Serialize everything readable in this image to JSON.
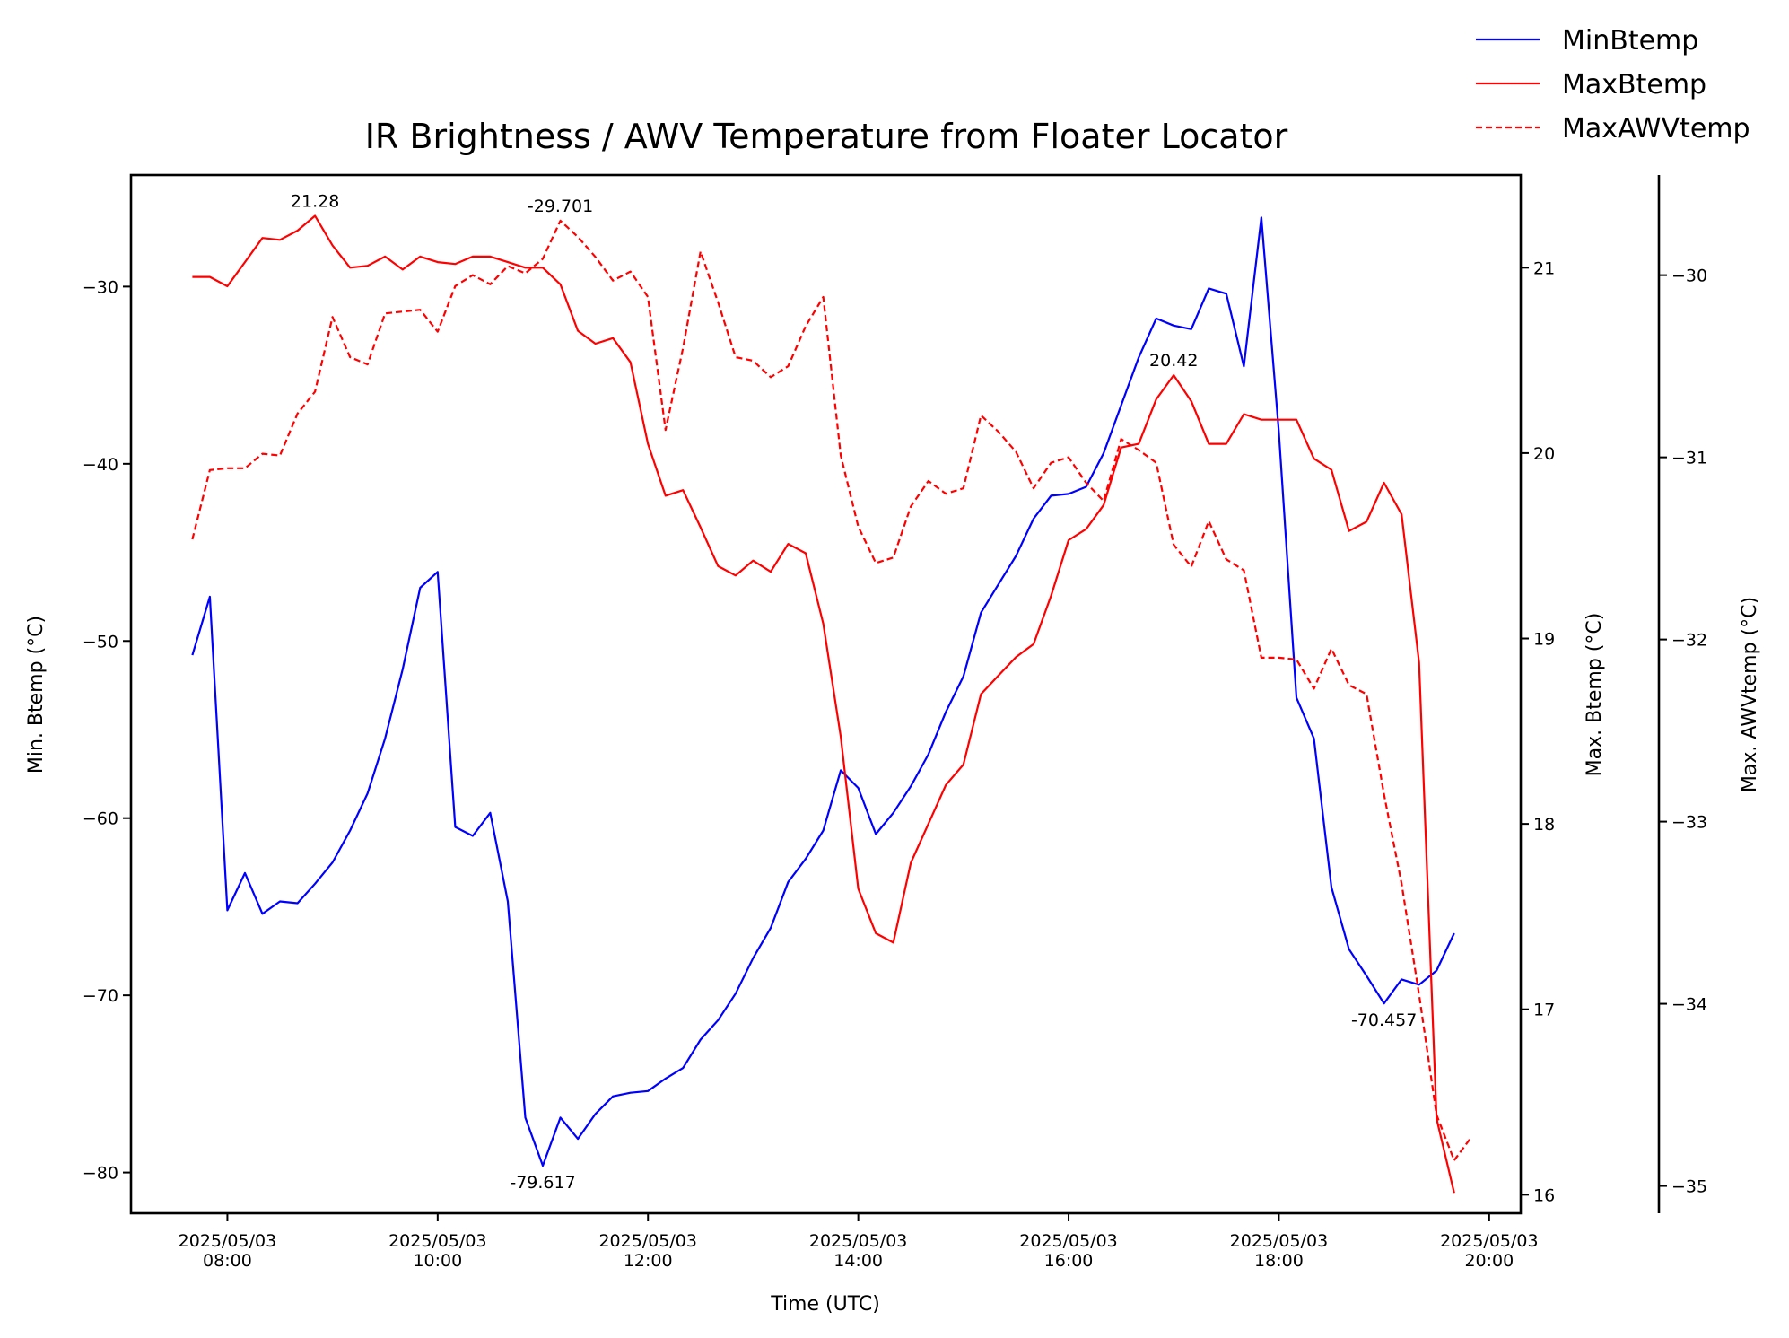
{
  "chart_data": {
    "type": "line",
    "title": "IR Brightness / AWV Temperature from Floater Locator",
    "xlabel": "Time (UTC)",
    "x_ticks": [
      "2025/05/03 08:00",
      "2025/05/03 10:00",
      "2025/05/03 12:00",
      "2025/05/03 14:00",
      "2025/05/03 16:00",
      "2025/05/03 18:00",
      "2025/05/03 20:00"
    ],
    "x_range": [
      "2025/05/03 07:05",
      "2025/05/03 20:18"
    ],
    "legend_position": "top-right, outside plot",
    "grid": false,
    "axes": {
      "left": {
        "label": "Min. Btemp (°C)",
        "range": [
          -82.3,
          -23.7
        ],
        "ticks": [
          -30,
          -40,
          -50,
          -60,
          -70,
          -80
        ]
      },
      "right": {
        "label": "Max. Btemp (°C)",
        "range": [
          15.9,
          21.5
        ],
        "ticks": [
          21,
          20,
          19,
          18,
          17,
          16
        ]
      },
      "right2": {
        "label": "Max. AWVtemp (°C)",
        "range": [
          -35.15,
          -29.45
        ],
        "ticks": [
          -30,
          -31,
          -32,
          -33,
          -34,
          -35
        ]
      }
    },
    "series": [
      {
        "name": "MinBtemp",
        "axis": "left",
        "color": "#0000ff",
        "style": "solid",
        "points": [
          [
            "07:40",
            -50.8
          ],
          [
            "07:50",
            -47.5
          ],
          [
            "08:00",
            -65.2
          ],
          [
            "08:10",
            -63.1
          ],
          [
            "08:20",
            -65.4
          ],
          [
            "08:30",
            -64.7
          ],
          [
            "08:40",
            -64.8
          ],
          [
            "08:50",
            -63.7
          ],
          [
            "09:00",
            -62.5
          ],
          [
            "09:10",
            -60.7
          ],
          [
            "09:20",
            -58.6
          ],
          [
            "09:30",
            -55.5
          ],
          [
            "09:40",
            -51.6
          ],
          [
            "09:50",
            -47.0
          ],
          [
            "10:00",
            -46.1
          ],
          [
            "10:10",
            -60.5
          ],
          [
            "10:20",
            -61.0
          ],
          [
            "10:30",
            -59.7
          ],
          [
            "10:40",
            -64.7
          ],
          [
            "10:50",
            -76.9
          ],
          [
            "11:00",
            -79.617
          ],
          [
            "11:10",
            -76.9
          ],
          [
            "11:20",
            -78.1
          ],
          [
            "11:30",
            -76.7
          ],
          [
            "11:40",
            -75.7
          ],
          [
            "11:50",
            -75.5
          ],
          [
            "12:00",
            -75.4
          ],
          [
            "12:10",
            -74.7
          ],
          [
            "12:20",
            -74.1
          ],
          [
            "12:30",
            -72.5
          ],
          [
            "12:40",
            -71.4
          ],
          [
            "12:50",
            -69.9
          ],
          [
            "13:00",
            -67.9
          ],
          [
            "13:10",
            -66.2
          ],
          [
            "13:20",
            -63.6
          ],
          [
            "13:30",
            -62.3
          ],
          [
            "13:40",
            -60.7
          ],
          [
            "13:50",
            -57.3
          ],
          [
            "14:00",
            -58.3
          ],
          [
            "14:10",
            -60.9
          ],
          [
            "14:20",
            -59.7
          ],
          [
            "14:30",
            -58.2
          ],
          [
            "14:40",
            -56.4
          ],
          [
            "14:50",
            -54.0
          ],
          [
            "15:00",
            -52.0
          ],
          [
            "15:10",
            -48.4
          ],
          [
            "15:20",
            -46.8
          ],
          [
            "15:30",
            -45.2
          ],
          [
            "15:40",
            -43.1
          ],
          [
            "15:50",
            -41.8
          ],
          [
            "16:00",
            -41.7
          ],
          [
            "16:10",
            -41.3
          ],
          [
            "16:20",
            -39.4
          ],
          [
            "16:30",
            -36.7
          ],
          [
            "16:40",
            -34.0
          ],
          [
            "16:50",
            -31.8
          ],
          [
            "17:00",
            -32.2
          ],
          [
            "17:10",
            -32.4
          ],
          [
            "17:20",
            -30.1
          ],
          [
            "17:30",
            -30.4
          ],
          [
            "17:40",
            -34.5
          ],
          [
            "17:50",
            -26.1
          ],
          [
            "18:00",
            -38.2
          ],
          [
            "18:10",
            -53.2
          ],
          [
            "18:20",
            -55.5
          ],
          [
            "18:30",
            -63.9
          ],
          [
            "18:40",
            -67.4
          ],
          [
            "18:50",
            -68.9
          ],
          [
            "19:00",
            -70.457
          ],
          [
            "19:10",
            -69.1
          ],
          [
            "19:20",
            -69.4
          ],
          [
            "19:30",
            -68.6
          ],
          [
            "19:40",
            -66.5
          ]
        ]
      },
      {
        "name": "MaxBtemp",
        "axis": "right",
        "color": "#ff0000",
        "style": "solid",
        "points": [
          [
            "07:40",
            20.95
          ],
          [
            "07:50",
            20.95
          ],
          [
            "08:00",
            20.9
          ],
          [
            "08:10",
            21.03
          ],
          [
            "08:20",
            21.16
          ],
          [
            "08:30",
            21.15
          ],
          [
            "08:40",
            21.2
          ],
          [
            "08:50",
            21.28
          ],
          [
            "09:00",
            21.12
          ],
          [
            "09:10",
            21.0
          ],
          [
            "09:20",
            21.01
          ],
          [
            "09:30",
            21.06
          ],
          [
            "09:40",
            20.99
          ],
          [
            "09:50",
            21.06
          ],
          [
            "10:00",
            21.03
          ],
          [
            "10:10",
            21.02
          ],
          [
            "10:20",
            21.06
          ],
          [
            "10:30",
            21.06
          ],
          [
            "10:40",
            21.03
          ],
          [
            "10:50",
            21.0
          ],
          [
            "11:00",
            21.0
          ],
          [
            "11:10",
            20.91
          ],
          [
            "11:20",
            20.66
          ],
          [
            "11:30",
            20.59
          ],
          [
            "11:40",
            20.62
          ],
          [
            "11:50",
            20.49
          ],
          [
            "12:00",
            20.05
          ],
          [
            "12:10",
            19.77
          ],
          [
            "12:20",
            19.8
          ],
          [
            "12:30",
            19.6
          ],
          [
            "12:40",
            19.39
          ],
          [
            "12:50",
            19.34
          ],
          [
            "13:00",
            19.42
          ],
          [
            "13:10",
            19.36
          ],
          [
            "13:20",
            19.51
          ],
          [
            "13:30",
            19.46
          ],
          [
            "13:40",
            19.08
          ],
          [
            "13:50",
            18.47
          ],
          [
            "14:00",
            17.65
          ],
          [
            "14:10",
            17.41
          ],
          [
            "14:20",
            17.36
          ],
          [
            "14:30",
            17.79
          ],
          [
            "14:40",
            18.0
          ],
          [
            "14:50",
            18.21
          ],
          [
            "15:00",
            18.32
          ],
          [
            "15:10",
            18.7
          ],
          [
            "15:20",
            18.8
          ],
          [
            "15:30",
            18.9
          ],
          [
            "15:40",
            18.97
          ],
          [
            "15:50",
            19.23
          ],
          [
            "16:00",
            19.53
          ],
          [
            "16:10",
            19.59
          ],
          [
            "16:20",
            19.72
          ],
          [
            "16:30",
            20.03
          ],
          [
            "16:40",
            20.05
          ],
          [
            "16:50",
            20.29
          ],
          [
            "17:00",
            20.42
          ],
          [
            "17:10",
            20.28
          ],
          [
            "17:20",
            20.05
          ],
          [
            "17:30",
            20.05
          ],
          [
            "17:40",
            20.21
          ],
          [
            "17:50",
            20.18
          ],
          [
            "18:00",
            20.18
          ],
          [
            "18:10",
            20.18
          ],
          [
            "18:20",
            19.97
          ],
          [
            "18:30",
            19.91
          ],
          [
            "18:40",
            19.58
          ],
          [
            "18:50",
            19.63
          ],
          [
            "19:00",
            19.84
          ],
          [
            "19:10",
            19.67
          ],
          [
            "19:20",
            18.87
          ],
          [
            "19:30",
            16.41
          ],
          [
            "19:40",
            16.01
          ]
        ]
      },
      {
        "name": "MaxAWVtemp",
        "axis": "right2",
        "color": "#ff0000",
        "style": "dashed",
        "points": [
          [
            "07:40",
            -31.45
          ],
          [
            "07:50",
            -31.07
          ],
          [
            "08:00",
            -31.06
          ],
          [
            "08:10",
            -31.06
          ],
          [
            "08:20",
            -30.98
          ],
          [
            "08:30",
            -30.99
          ],
          [
            "08:40",
            -30.76
          ],
          [
            "08:50",
            -30.64
          ],
          [
            "09:00",
            -30.23
          ],
          [
            "09:10",
            -30.45
          ],
          [
            "09:20",
            -30.49
          ],
          [
            "09:30",
            -30.21
          ],
          [
            "09:40",
            -30.2
          ],
          [
            "09:50",
            -30.19
          ],
          [
            "10:00",
            -30.31
          ],
          [
            "10:10",
            -30.06
          ],
          [
            "10:20",
            -30.0
          ],
          [
            "10:30",
            -30.05
          ],
          [
            "10:40",
            -29.95
          ],
          [
            "10:50",
            -29.99
          ],
          [
            "11:00",
            -29.91
          ],
          [
            "11:10",
            -29.701
          ],
          [
            "11:20",
            -29.79
          ],
          [
            "11:30",
            -29.9
          ],
          [
            "11:40",
            -30.03
          ],
          [
            "11:50",
            -29.98
          ],
          [
            "12:00",
            -30.12
          ],
          [
            "12:10",
            -30.85
          ],
          [
            "12:20",
            -30.4
          ],
          [
            "12:30",
            -29.87
          ],
          [
            "12:40",
            -30.15
          ],
          [
            "12:50",
            -30.45
          ],
          [
            "13:00",
            -30.47
          ],
          [
            "13:10",
            -30.56
          ],
          [
            "13:20",
            -30.5
          ],
          [
            "13:30",
            -30.28
          ],
          [
            "13:40",
            -30.12
          ],
          [
            "13:50",
            -30.99
          ],
          [
            "14:00",
            -31.38
          ],
          [
            "14:10",
            -31.58
          ],
          [
            "14:20",
            -31.55
          ],
          [
            "14:30",
            -31.27
          ],
          [
            "14:40",
            -31.13
          ],
          [
            "14:50",
            -31.2
          ],
          [
            "15:00",
            -31.17
          ],
          [
            "15:10",
            -30.77
          ],
          [
            "15:20",
            -30.86
          ],
          [
            "15:30",
            -30.97
          ],
          [
            "15:40",
            -31.17
          ],
          [
            "15:50",
            -31.03
          ],
          [
            "16:00",
            -31.0
          ],
          [
            "16:10",
            -31.14
          ],
          [
            "16:20",
            -31.24
          ],
          [
            "16:30",
            -30.9
          ],
          [
            "16:40",
            -30.96
          ],
          [
            "16:50",
            -31.03
          ],
          [
            "17:00",
            -31.48
          ],
          [
            "17:10",
            -31.6
          ],
          [
            "17:20",
            -31.35
          ],
          [
            "17:30",
            -31.56
          ],
          [
            "17:40",
            -31.62
          ],
          [
            "17:50",
            -32.1
          ],
          [
            "18:00",
            -32.1
          ],
          [
            "18:10",
            -32.11
          ],
          [
            "18:20",
            -32.27
          ],
          [
            "18:30",
            -32.05
          ],
          [
            "18:40",
            -32.25
          ],
          [
            "18:50",
            -32.3
          ],
          [
            "19:00",
            -32.85
          ],
          [
            "19:10",
            -33.34
          ],
          [
            "19:20",
            -33.95
          ],
          [
            "19:30",
            -34.61
          ],
          [
            "19:40",
            -34.86
          ],
          [
            "19:50",
            -34.73
          ]
        ]
      }
    ],
    "annotations": [
      {
        "series": "MaxBtemp",
        "x": "08:50",
        "y": 21.28,
        "text": "21.28",
        "placement": "above"
      },
      {
        "series": "MaxAWVtemp",
        "x": "11:10",
        "y": -29.701,
        "text": "-29.701",
        "placement": "above"
      },
      {
        "series": "MaxBtemp",
        "x": "17:00",
        "y": 20.42,
        "text": "20.42",
        "placement": "above"
      },
      {
        "series": "MinBtemp",
        "x": "11:00",
        "y": -79.617,
        "text": "-79.617",
        "placement": "below"
      },
      {
        "series": "MinBtemp",
        "x": "19:00",
        "y": -70.457,
        "text": "-70.457",
        "placement": "below"
      }
    ]
  }
}
